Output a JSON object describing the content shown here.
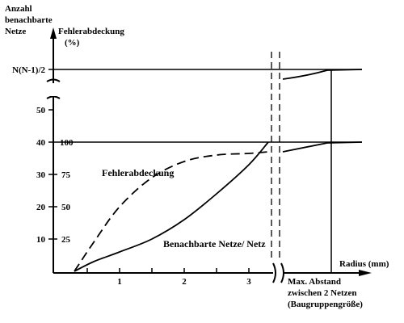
{
  "chart_data": {
    "type": "line",
    "title": "",
    "ylabel_left": [
      "Anzahl",
      "benachbarte",
      "Netze"
    ],
    "ylabel_right": [
      "Fehlerabdeckung",
      "(%)"
    ],
    "xlabel": "Radius (mm)",
    "x_ticks": [
      "1",
      "2",
      "3"
    ],
    "y_ticks_left": [
      "10",
      "20",
      "30",
      "40",
      "50",
      "N(N-1)/2"
    ],
    "y_ticks_right": [
      "25",
      "50",
      "75",
      "100"
    ],
    "x_end_label": [
      "Max. Abstand",
      "zwischen 2 Netzen",
      "(Baugruppengröße)"
    ],
    "xlim": [
      0,
      3.6
    ],
    "ylim": [
      0,
      50
    ],
    "series": [
      {
        "name": "Benachbarte Netze/ Netz",
        "style": "solid",
        "x": [
          0.3,
          0.6,
          1.0,
          1.5,
          2.0,
          2.5,
          3.0,
          3.3
        ],
        "y": [
          0,
          3,
          6,
          10,
          16,
          24,
          33,
          40
        ]
      },
      {
        "name": "Fehlerabdeckung",
        "style": "dashed",
        "x": [
          0.3,
          0.6,
          1.0,
          1.5,
          2.0,
          2.5,
          3.0,
          3.3
        ],
        "y": [
          0,
          9,
          20,
          29,
          34,
          36,
          36.5,
          37
        ]
      }
    ],
    "break_segment": {
      "upper": {
        "from": "curve",
        "to": "N(N-1)/2",
        "style": "solid"
      },
      "middle": {
        "from": "curve",
        "to": "100",
        "style": "solid"
      }
    },
    "grid": false,
    "legend": "none"
  }
}
